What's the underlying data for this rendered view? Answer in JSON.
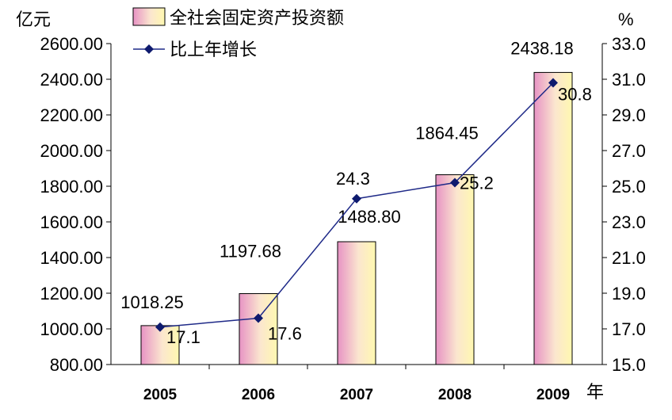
{
  "chart_data": {
    "type": "bar+line",
    "categories": [
      "2005",
      "2006",
      "2007",
      "2008",
      "2009"
    ],
    "x_unit": "年",
    "series": [
      {
        "name": "全社会固定资产投资额",
        "type": "bar",
        "axis": "left",
        "values": [
          1018.25,
          1197.68,
          1488.8,
          1864.45,
          2438.18
        ],
        "labels": [
          "1018.25",
          "1197.68",
          "1488.80",
          "1864.45",
          "2438.18"
        ]
      },
      {
        "name": "比上年增长",
        "type": "line",
        "axis": "right",
        "values": [
          17.1,
          17.6,
          24.3,
          25.2,
          30.8
        ],
        "labels": [
          "17.1",
          "17.6",
          "24.3",
          "25.2",
          "30.8"
        ]
      }
    ],
    "y_left": {
      "unit": "亿元",
      "min": 800,
      "max": 2600,
      "step": 200,
      "ticks": [
        "800.00",
        "1000.00",
        "1200.00",
        "1400.00",
        "1600.00",
        "1800.00",
        "2000.00",
        "2200.00",
        "2400.00",
        "2600.00"
      ]
    },
    "y_right": {
      "unit": "%",
      "min": 15,
      "max": 33,
      "step": 2,
      "ticks": [
        "15.0",
        "17.0",
        "19.0",
        "21.0",
        "23.0",
        "25.0",
        "27.0",
        "29.0",
        "31.0",
        "33.0"
      ]
    },
    "grid": false,
    "legend_position": "top-left",
    "colors": {
      "bar_edge": "#e9a0c8",
      "bar_mid": "#fff4b8",
      "bar_border": "#000000",
      "line": "#1f2a88",
      "marker": "#0e1a6e"
    }
  }
}
